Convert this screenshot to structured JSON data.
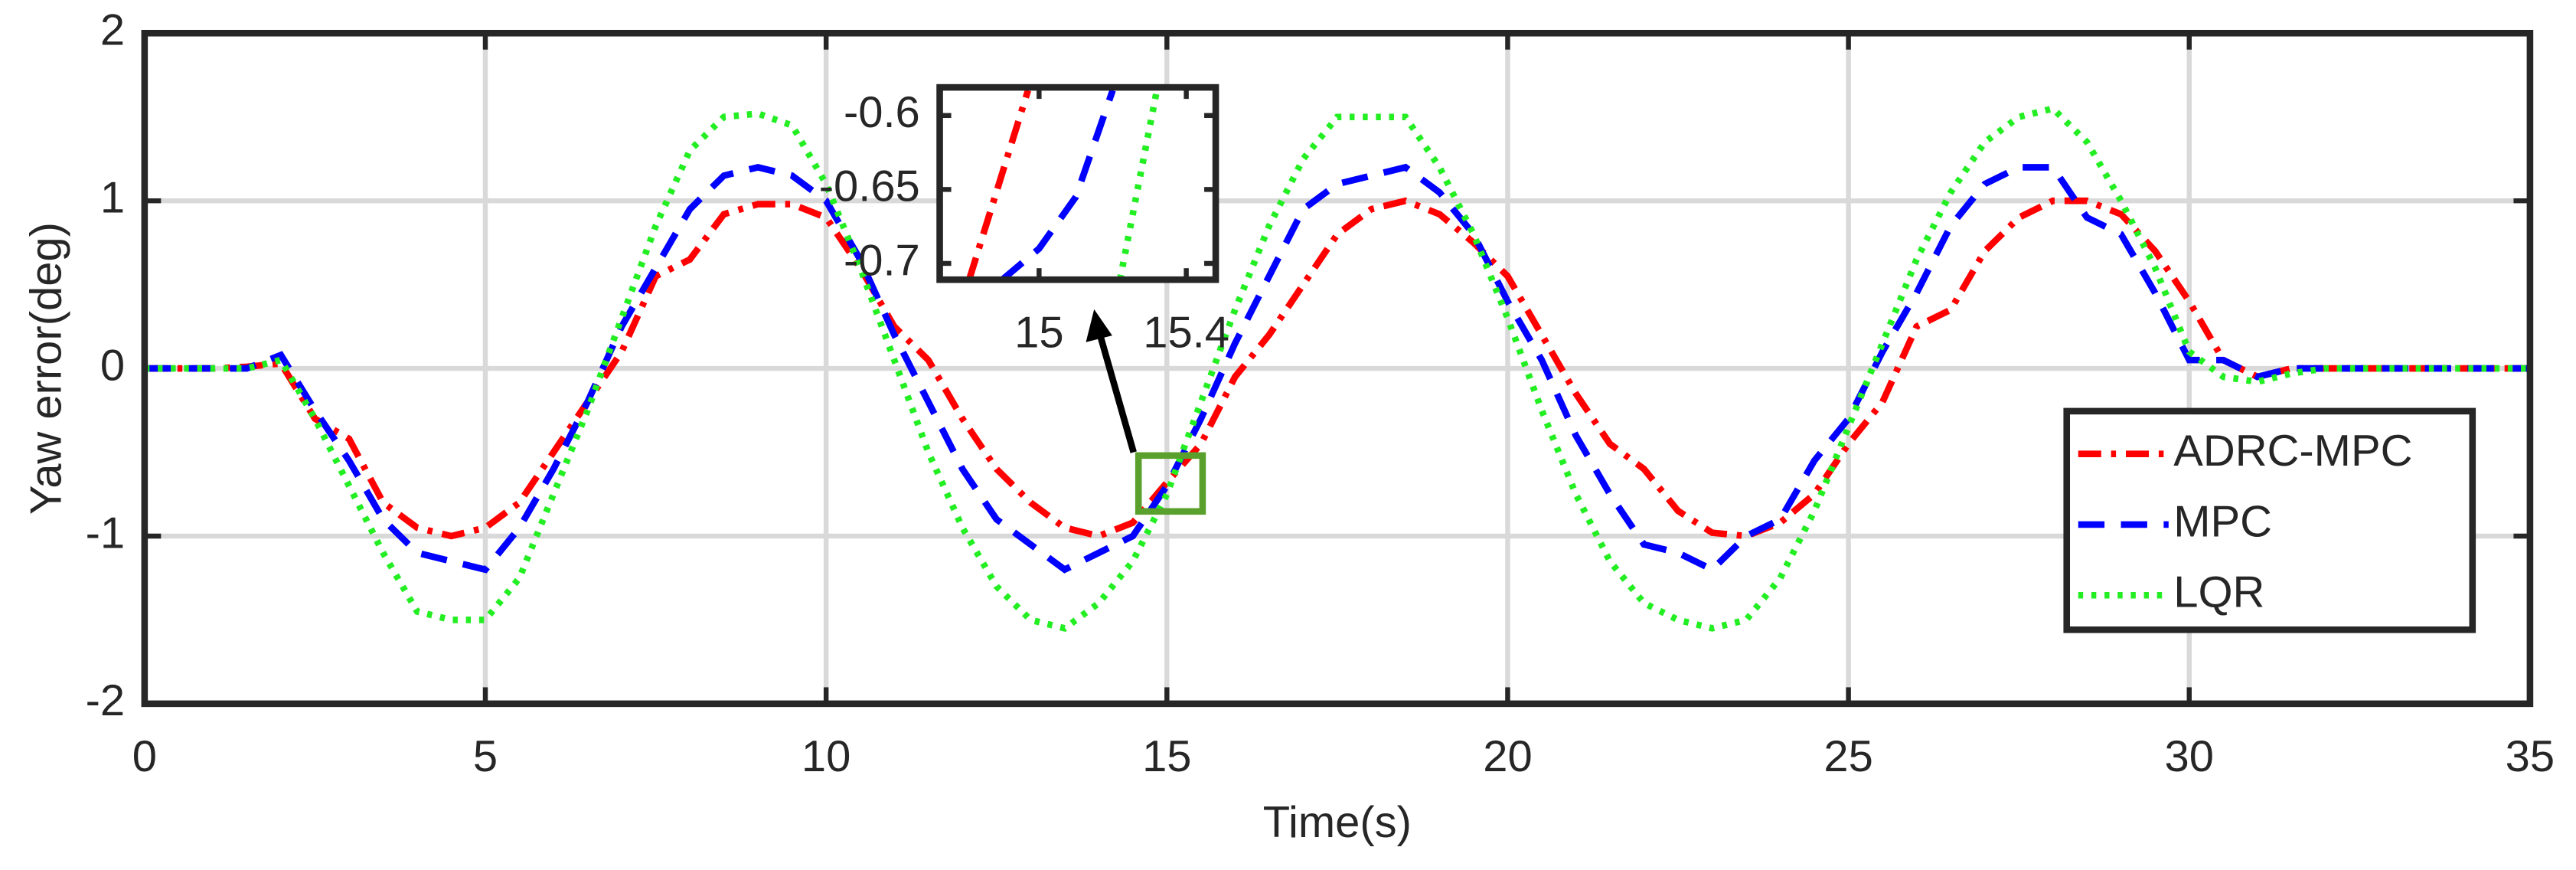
{
  "chart_data": [
    {
      "type": "line",
      "xlabel": "Time(s)",
      "ylabel": "Yaw error(deg)",
      "xlim": [
        0,
        35
      ],
      "ylim": [
        -2,
        2
      ],
      "xticks": [
        0,
        5,
        10,
        15,
        20,
        25,
        30,
        35
      ],
      "yticks": [
        -2,
        -1,
        0,
        1,
        2
      ],
      "grid": true,
      "legend": "east",
      "x": [
        0,
        0.5,
        1,
        1.5,
        2,
        2.5,
        3,
        3.5,
        4,
        4.5,
        5,
        5.5,
        6,
        6.5,
        7,
        7.5,
        8,
        8.5,
        9,
        9.5,
        10,
        10.5,
        11,
        11.5,
        12,
        12.5,
        13,
        13.5,
        14,
        14.5,
        15,
        15.5,
        16,
        16.5,
        17,
        17.5,
        18,
        18.5,
        19,
        19.5,
        20,
        20.5,
        21,
        21.5,
        22,
        22.5,
        23,
        23.5,
        24,
        24.5,
        25,
        25.5,
        26,
        26.5,
        27,
        27.5,
        28,
        28.5,
        29,
        29.5,
        30,
        30.5,
        31,
        31.5,
        32,
        32.5,
        33,
        33.5,
        34,
        34.5,
        35
      ],
      "series": [
        {
          "name": "ADRC-MPC",
          "color": "#ff0000",
          "dash": "dash-dot",
          "values": [
            0,
            0,
            0,
            0.01,
            0.03,
            -0.3,
            -0.42,
            -0.8,
            -0.95,
            -1.0,
            -0.95,
            -0.8,
            -0.5,
            -0.2,
            0.1,
            0.55,
            0.65,
            0.92,
            0.98,
            0.98,
            0.9,
            0.6,
            0.25,
            0.05,
            -0.3,
            -0.6,
            -0.8,
            -0.95,
            -1.0,
            -0.92,
            -0.68,
            -0.45,
            -0.05,
            0.2,
            0.5,
            0.8,
            0.95,
            1.0,
            0.92,
            0.75,
            0.55,
            0.2,
            -0.15,
            -0.45,
            -0.6,
            -0.85,
            -0.98,
            -1.0,
            -0.92,
            -0.75,
            -0.45,
            -0.2,
            0.25,
            0.35,
            0.7,
            0.9,
            1.0,
            1.0,
            0.92,
            0.7,
            0.4,
            0.05,
            -0.05,
            0,
            0,
            0,
            0,
            0,
            0,
            0,
            0
          ]
        },
        {
          "name": "MPC",
          "color": "#0000ff",
          "dash": "dash",
          "values": [
            0,
            0,
            0,
            0,
            0.08,
            -0.25,
            -0.55,
            -0.9,
            -1.1,
            -1.15,
            -1.2,
            -0.95,
            -0.6,
            -0.2,
            0.25,
            0.6,
            0.95,
            1.15,
            1.2,
            1.15,
            1.0,
            0.65,
            0.2,
            -0.2,
            -0.6,
            -0.9,
            -1.05,
            -1.2,
            -1.1,
            -1.0,
            -0.7,
            -0.3,
            0.15,
            0.55,
            0.95,
            1.1,
            1.15,
            1.2,
            1.05,
            0.8,
            0.4,
            0.05,
            -0.4,
            -0.75,
            -1.05,
            -1.1,
            -1.2,
            -1.0,
            -0.9,
            -0.55,
            -0.3,
            0.1,
            0.45,
            0.85,
            1.1,
            1.2,
            1.2,
            0.9,
            0.8,
            0.45,
            0.05,
            0.05,
            -0.05,
            0,
            0,
            0,
            0,
            0,
            0,
            0,
            0
          ]
        },
        {
          "name": "LQR",
          "color": "#22ee22",
          "dash": "dot",
          "values": [
            0,
            0,
            0,
            0,
            0.05,
            -0.3,
            -0.7,
            -1.1,
            -1.45,
            -1.5,
            -1.5,
            -1.25,
            -0.75,
            -0.25,
            0.3,
            0.85,
            1.3,
            1.5,
            1.52,
            1.45,
            1.1,
            0.6,
            0.05,
            -0.5,
            -0.95,
            -1.3,
            -1.5,
            -1.55,
            -1.4,
            -1.15,
            -0.75,
            -0.2,
            0.35,
            0.85,
            1.25,
            1.5,
            1.5,
            1.5,
            1.2,
            0.8,
            0.3,
            -0.25,
            -0.75,
            -1.15,
            -1.4,
            -1.5,
            -1.55,
            -1.5,
            -1.25,
            -0.85,
            -0.35,
            0.15,
            0.65,
            1.05,
            1.35,
            1.5,
            1.55,
            1.35,
            1.0,
            0.6,
            0.1,
            -0.05,
            -0.08,
            -0.03,
            0,
            0,
            0,
            0,
            0,
            0,
            0
          ]
        }
      ]
    },
    {
      "type": "line",
      "xlim": [
        14.73,
        15.48
      ],
      "ylim": [
        -0.711,
        -0.581
      ],
      "xticks": [
        15,
        15.4
      ],
      "yticks": [
        -0.6,
        -0.65,
        -0.7
      ],
      "grid": false,
      "series": [
        {
          "color": "#ff0000",
          "dash": "dash-dot",
          "x": [
            14.81,
            14.97
          ],
          "values": [
            -0.711,
            -0.583
          ]
        },
        {
          "color": "#0000ff",
          "dash": "dash",
          "x": [
            14.9,
            15.0,
            15.1,
            15.2
          ],
          "values": [
            -0.711,
            -0.69,
            -0.655,
            -0.583
          ]
        },
        {
          "color": "#22ee22",
          "dash": "dot",
          "x": [
            15.22,
            15.32
          ],
          "values": [
            -0.711,
            -0.583
          ]
        }
      ]
    }
  ]
}
